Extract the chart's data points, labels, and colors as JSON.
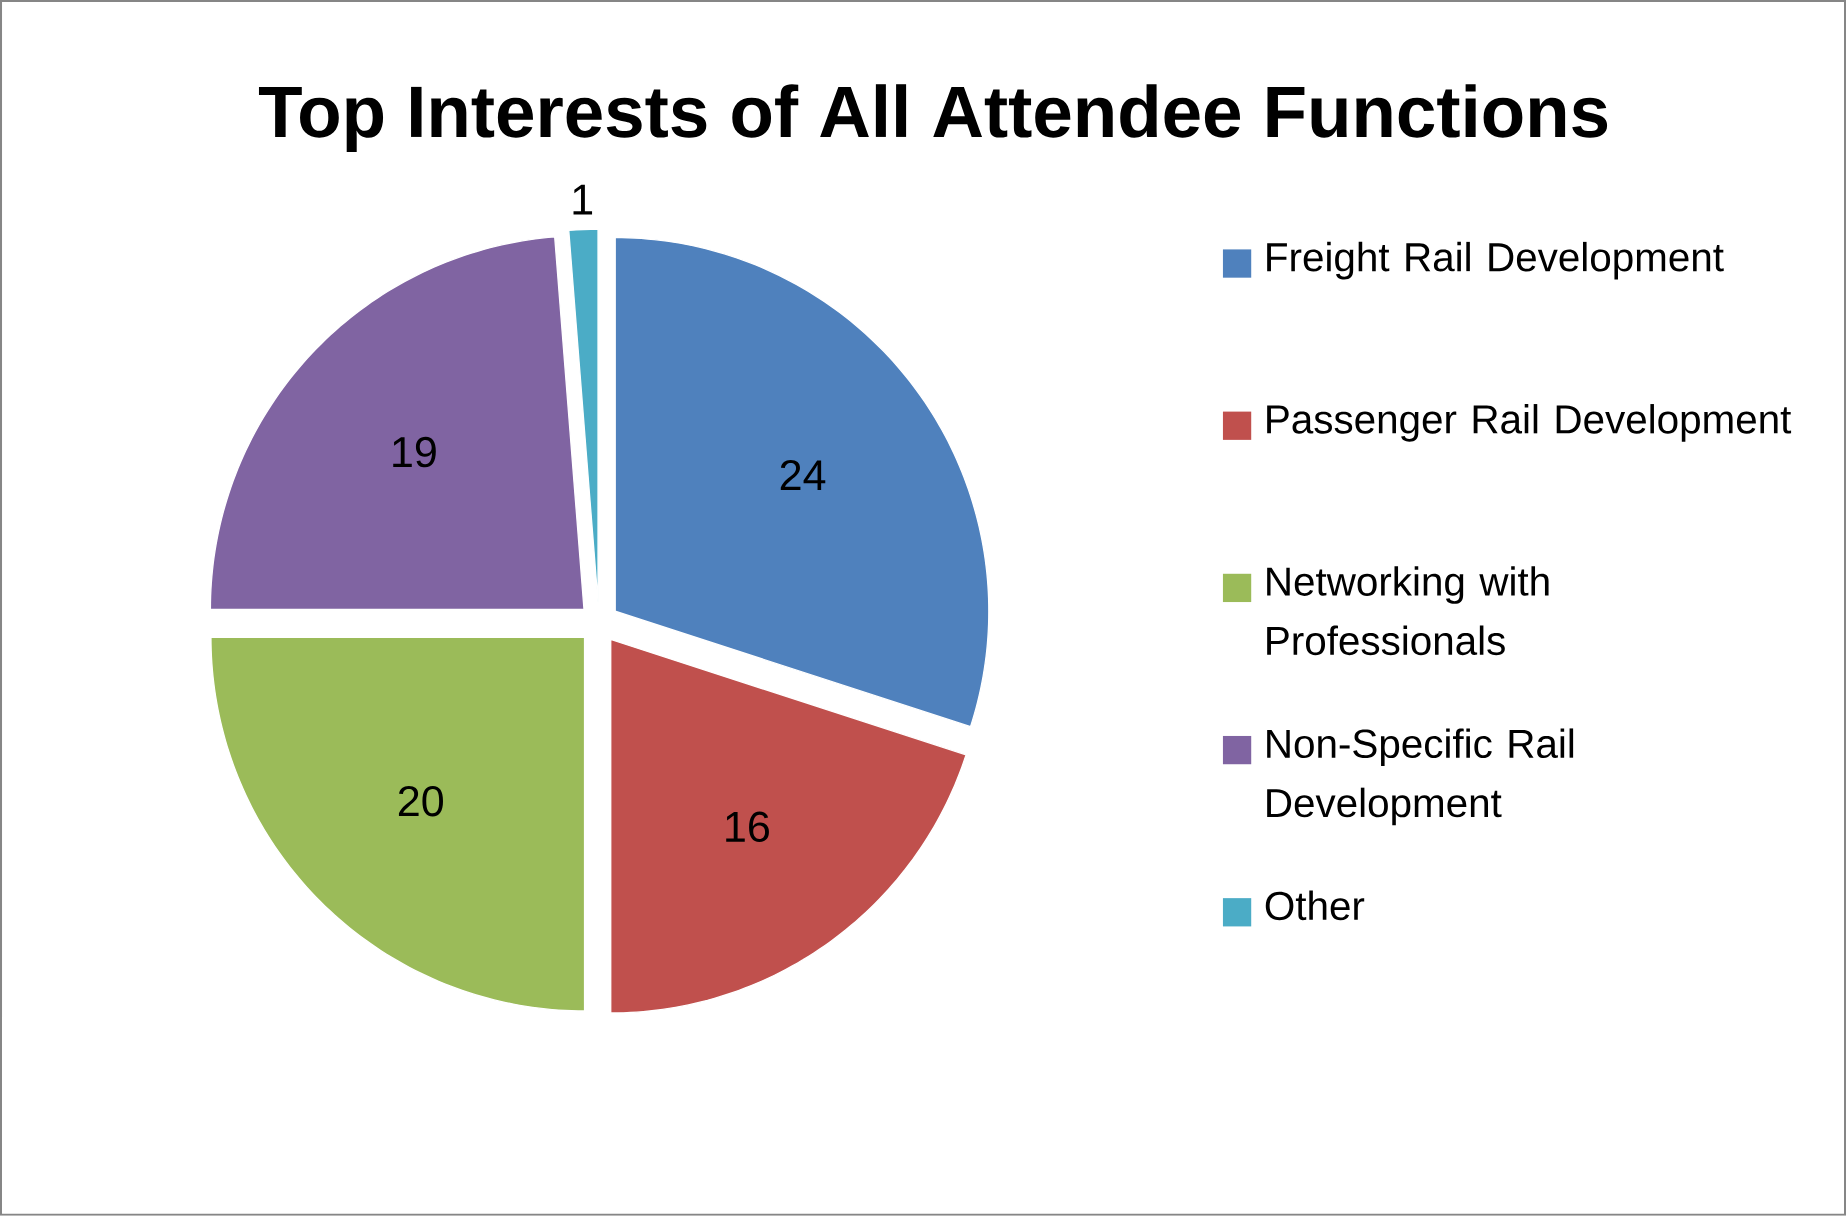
{
  "chart_data": {
    "type": "pie",
    "title": "Top Interests of All Attendee Functions",
    "categories": [
      "Freight Rail Development",
      "Passenger Rail Development",
      "Networking with Professionals",
      "Non-Specific Rail Development",
      "Other"
    ],
    "values": [
      24,
      16,
      20,
      19,
      1
    ],
    "colors": [
      "#4f81bd",
      "#c0504d",
      "#9bbb59",
      "#8064a2",
      "#4bacc6"
    ],
    "data_labels": true,
    "legend": "right"
  }
}
